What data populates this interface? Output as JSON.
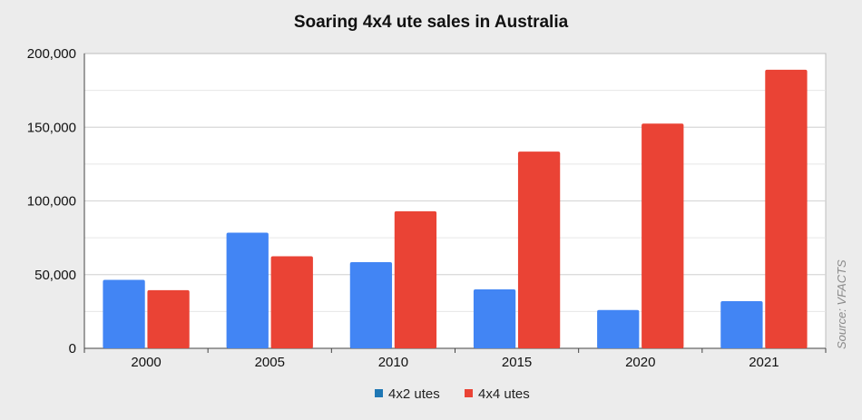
{
  "chart_data": {
    "type": "bar",
    "title": "Soaring 4x4 ute sales in Australia",
    "categories": [
      "2000",
      "2005",
      "2010",
      "2015",
      "2020",
      "2021"
    ],
    "series": [
      {
        "name": "4x2 utes",
        "color": "#4285f4",
        "values": [
          46500,
          78500,
          58500,
          40000,
          26000,
          32000
        ]
      },
      {
        "name": "4x4 utes",
        "color": "#ea4335",
        "values": [
          39500,
          62500,
          93000,
          133500,
          152500,
          189000
        ]
      }
    ],
    "ylim": [
      0,
      200000
    ],
    "y_ticks": [
      0,
      50000,
      100000,
      150000,
      200000
    ],
    "y_tick_labels": [
      "0",
      "50,000",
      "100,000",
      "150,000",
      "200,000"
    ],
    "grid": true,
    "legend_position": "bottom",
    "legend_marker_color": "#1f77b4",
    "source": "Source: VFACTS"
  }
}
